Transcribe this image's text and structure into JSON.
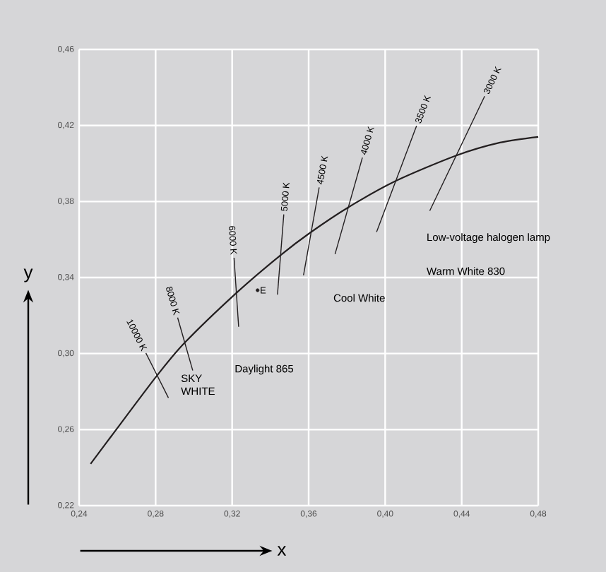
{
  "chart_data": {
    "type": "line",
    "xlabel": "x",
    "ylabel": "y",
    "grid": true,
    "xlim": [
      0.24,
      0.48
    ],
    "ylim": [
      0.22,
      0.46
    ],
    "xticks": [
      {
        "value": 0.24,
        "label": "0,24"
      },
      {
        "value": 0.28,
        "label": "0,28"
      },
      {
        "value": 0.32,
        "label": "0,32"
      },
      {
        "value": 0.36,
        "label": "0,36"
      },
      {
        "value": 0.4,
        "label": "0,40"
      },
      {
        "value": 0.44,
        "label": "0,44"
      },
      {
        "value": 0.48,
        "label": "0,48"
      }
    ],
    "yticks": [
      {
        "value": 0.22,
        "label": "0,22"
      },
      {
        "value": 0.26,
        "label": "0,26"
      },
      {
        "value": 0.3,
        "label": "0,30"
      },
      {
        "value": 0.34,
        "label": "0,34"
      },
      {
        "value": 0.38,
        "label": "0,38"
      },
      {
        "value": 0.42,
        "label": "0,42"
      },
      {
        "value": 0.46,
        "label": "0,46"
      }
    ],
    "series": [
      {
        "color": "#231f20",
        "x": [
          0.246,
          0.2568,
          0.2807,
          0.2952,
          0.3221,
          0.3451,
          0.3608,
          0.3805,
          0.4053,
          0.4369,
          0.46,
          0.48
        ],
        "values": [
          0.242,
          0.2565,
          0.2884,
          0.3057,
          0.3318,
          0.3516,
          0.3636,
          0.3768,
          0.3907,
          0.4041,
          0.411,
          0.414
        ]
      },
      {
        "name": "10000 K",
        "color": "#231f20",
        "x": [
          0.2867,
          0.2749
        ],
        "values": [
          0.2767,
          0.3003
        ]
      },
      {
        "name": "8000 K",
        "color": "#231f20",
        "x": [
          0.2994,
          0.2915
        ],
        "values": [
          0.2911,
          0.3189
        ]
      },
      {
        "name": "6000 K",
        "color": "#231f20",
        "x": [
          0.3234,
          0.321
        ],
        "values": [
          0.3141,
          0.3504
        ]
      },
      {
        "name": "5000 K",
        "color": "#231f20",
        "x": [
          0.3437,
          0.347
        ],
        "values": [
          0.331,
          0.3732
        ]
      },
      {
        "name": "4500 K",
        "color": "#231f20",
        "x": [
          0.3573,
          0.3655
        ],
        "values": [
          0.3412,
          0.3874
        ]
      },
      {
        "name": "4000 K",
        "color": "#231f20",
        "x": [
          0.3738,
          0.3881
        ],
        "values": [
          0.3523,
          0.4031
        ]
      },
      {
        "name": "3500 K",
        "color": "#231f20",
        "x": [
          0.3955,
          0.4164
        ],
        "values": [
          0.364,
          0.4198
        ]
      },
      {
        "name": "3000 K",
        "color": "#231f20",
        "x": [
          0.4233,
          0.452
        ],
        "values": [
          0.3751,
          0.4354
        ]
      },
      {
        "type": "scatter",
        "name": "E",
        "color": "#231f20",
        "x": [
          0.3333
        ],
        "values": [
          0.3333
        ]
      }
    ],
    "annotations": [
      "SKY",
      "WHITE",
      "Daylight 865",
      "Cool White",
      "Low-voltage halogen lamp",
      "Warm White 830"
    ]
  }
}
